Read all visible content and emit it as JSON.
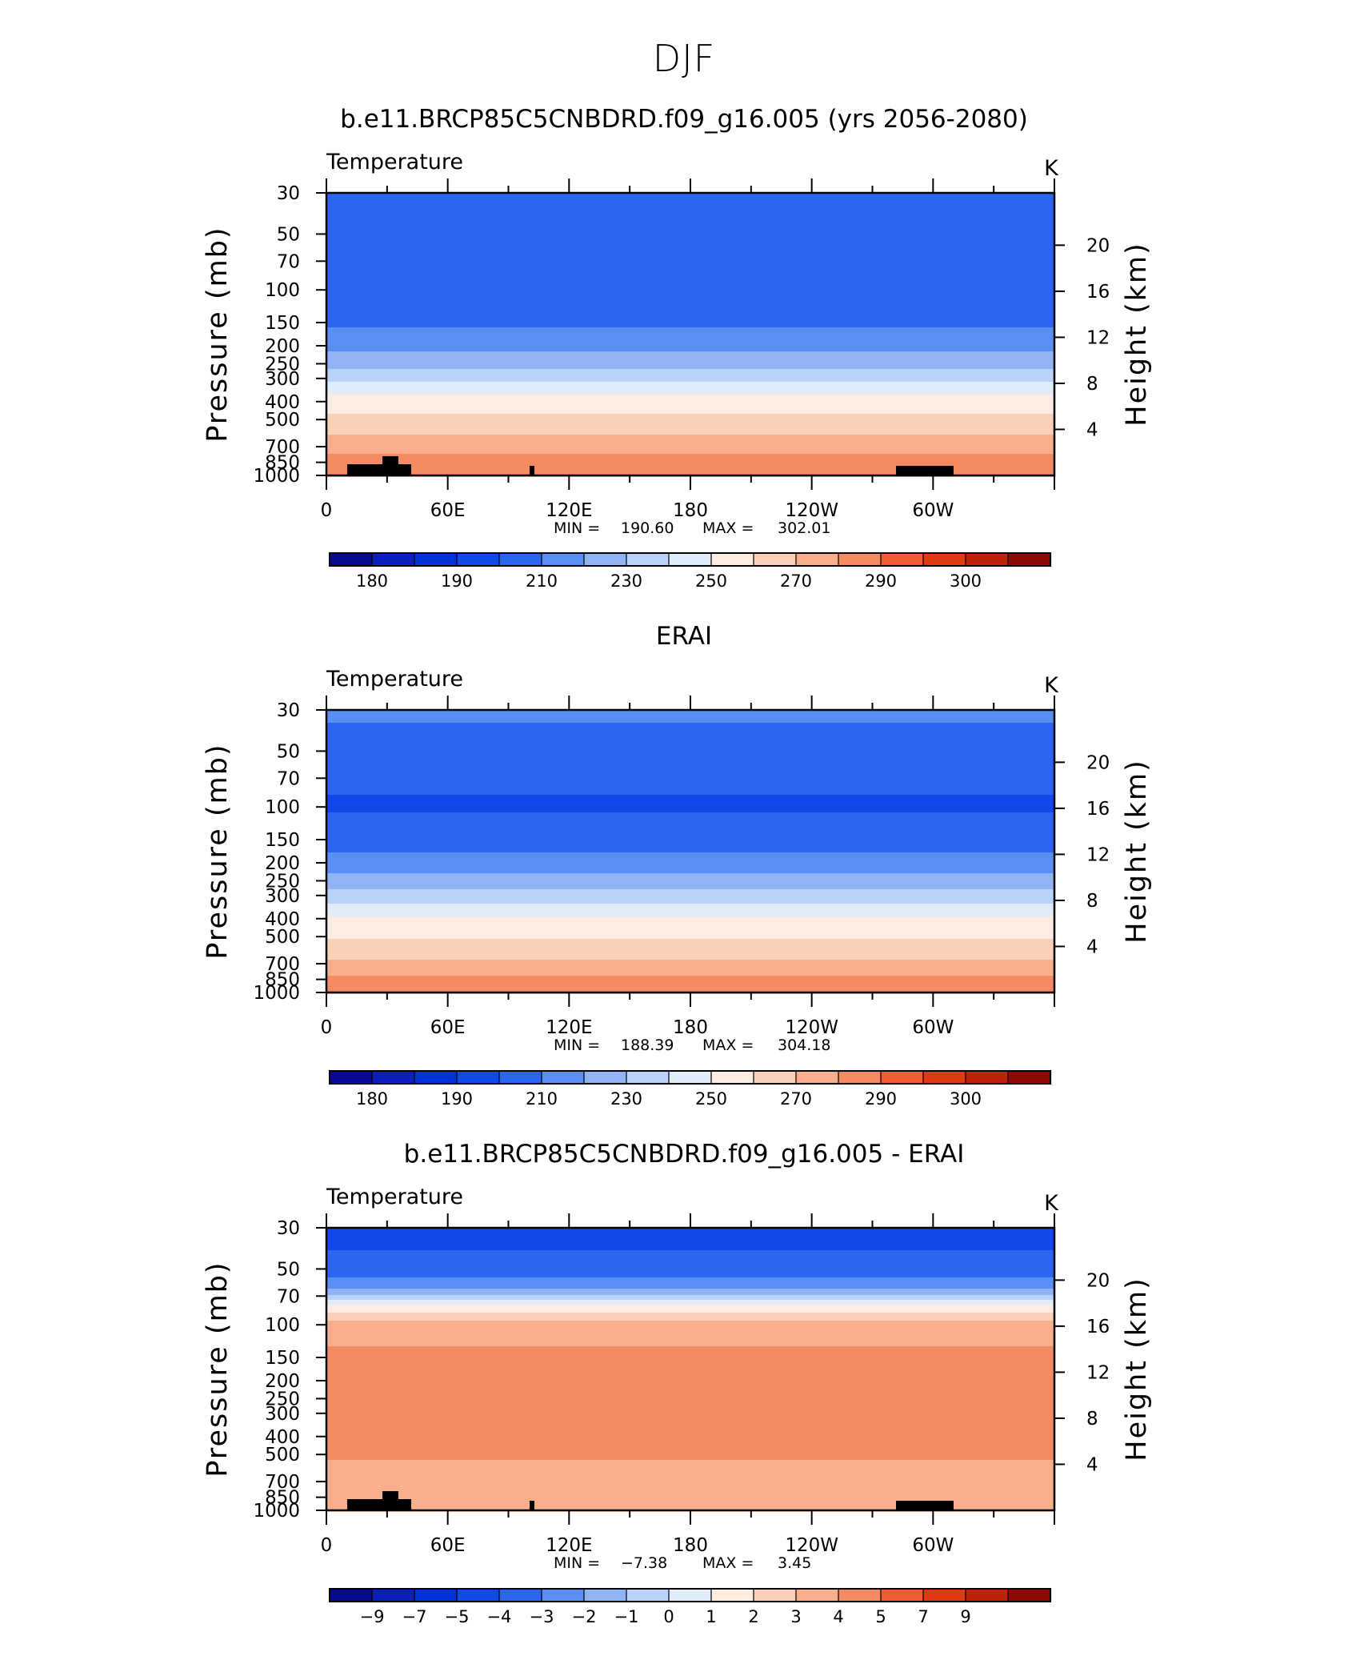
{
  "figure": {
    "title": "DJF"
  },
  "colors": {
    "temperature_palette": [
      "#08088f",
      "#0a1fbb",
      "#0032dc",
      "#1048ea",
      "#2a66ee",
      "#5a8ef2",
      "#8fb3f5",
      "#bad2f8",
      "#e1ecfb",
      "#fdece1",
      "#fbd0b8",
      "#f9af8e",
      "#f68a63",
      "#f15c34",
      "#e03a12",
      "#bf2208",
      "#8e0a06"
    ],
    "anomaly_palette": [
      "#08088f",
      "#0a1fbb",
      "#0032dc",
      "#1048ea",
      "#2a66ee",
      "#5a8ef2",
      "#8fb3f5",
      "#bad2f8",
      "#e1ecfb",
      "#fdece1",
      "#fbd0b8",
      "#f9af8e",
      "#f68a63",
      "#f15c34",
      "#e03a12",
      "#bf2208",
      "#8e0a06"
    ],
    "topography": "#000000"
  },
  "chart_data": [
    {
      "type": "heatmap",
      "title": "b.e11.BRCP85C5CNBDRD.f09_g16.005 (yrs 2056-2080)",
      "left_label": "Temperature",
      "right_label": "K",
      "xlabel": "",
      "ylabel": "Pressure (mb)",
      "ylabel_right": "Height (km)",
      "x_ticks": [
        "0",
        "60E",
        "120E",
        "180",
        "120W",
        "60W"
      ],
      "y_ticks": [
        "30",
        "50",
        "70",
        "100",
        "150",
        "200",
        "250",
        "300",
        "400",
        "500",
        "700",
        "850",
        "1000"
      ],
      "y_ticks_right": [
        "20",
        "16",
        "12",
        "8",
        "4"
      ],
      "stats": {
        "min_label": "MIN =",
        "min": "190.60",
        "max_label": "MAX =",
        "max": "302.01"
      },
      "colorbar_labels": [
        "180",
        "190",
        "210",
        "230",
        "250",
        "270",
        "290",
        "300"
      ],
      "profile": [
        {
          "p": 30,
          "v": 208
        },
        {
          "p": 45,
          "v": 204
        },
        {
          "p": 70,
          "v": 201
        },
        {
          "p": 100,
          "v": 200
        },
        {
          "p": 130,
          "v": 203
        },
        {
          "p": 170,
          "v": 212
        },
        {
          "p": 230,
          "v": 222
        },
        {
          "p": 280,
          "v": 232
        },
        {
          "p": 330,
          "v": 245
        },
        {
          "p": 400,
          "v": 254
        },
        {
          "p": 500,
          "v": 263
        },
        {
          "p": 600,
          "v": 270
        },
        {
          "p": 700,
          "v": 276
        },
        {
          "p": 800,
          "v": 282
        },
        {
          "p": 900,
          "v": 287
        },
        {
          "p": 1000,
          "v": 290
        }
      ]
    },
    {
      "type": "heatmap",
      "title": "ERAI",
      "left_label": "Temperature",
      "right_label": "K",
      "xlabel": "",
      "ylabel": "Pressure (mb)",
      "ylabel_right": "Height (km)",
      "x_ticks": [
        "0",
        "60E",
        "120E",
        "180",
        "120W",
        "60W"
      ],
      "y_ticks": [
        "30",
        "50",
        "70",
        "100",
        "150",
        "200",
        "250",
        "300",
        "400",
        "500",
        "700",
        "850",
        "1000"
      ],
      "y_ticks_right": [
        "20",
        "16",
        "12",
        "8",
        "4"
      ],
      "stats": {
        "min_label": "MIN =",
        "min": "188.39",
        "max_label": "MAX =",
        "max": "304.18"
      },
      "colorbar_labels": [
        "180",
        "190",
        "210",
        "230",
        "250",
        "270",
        "290",
        "300"
      ],
      "profile": [
        {
          "p": 30,
          "v": 214
        },
        {
          "p": 40,
          "v": 207
        },
        {
          "p": 55,
          "v": 203
        },
        {
          "p": 100,
          "v": 199
        },
        {
          "p": 150,
          "v": 205
        },
        {
          "p": 200,
          "v": 214
        },
        {
          "p": 250,
          "v": 224
        },
        {
          "p": 300,
          "v": 234
        },
        {
          "p": 350,
          "v": 244
        },
        {
          "p": 400,
          "v": 251
        },
        {
          "p": 500,
          "v": 259
        },
        {
          "p": 600,
          "v": 266
        },
        {
          "p": 700,
          "v": 272
        },
        {
          "p": 800,
          "v": 279
        },
        {
          "p": 900,
          "v": 285
        },
        {
          "p": 1000,
          "v": 289
        }
      ]
    },
    {
      "type": "heatmap",
      "title": "b.e11.BRCP85C5CNBDRD.f09_g16.005 - ERAI",
      "left_label": "Temperature",
      "right_label": "K",
      "xlabel": "",
      "ylabel": "Pressure (mb)",
      "ylabel_right": "Height (km)",
      "x_ticks": [
        "0",
        "60E",
        "120E",
        "180",
        "120W",
        "60W"
      ],
      "y_ticks": [
        "30",
        "50",
        "70",
        "100",
        "150",
        "200",
        "250",
        "300",
        "400",
        "500",
        "700",
        "850",
        "1000"
      ],
      "y_ticks_right": [
        "20",
        "16",
        "12",
        "8",
        "4"
      ],
      "stats": {
        "min_label": "MIN =",
        "min": "−7.38",
        "max_label": "MAX =",
        "max": "3.45"
      },
      "colorbar_labels": [
        "−9",
        "−7",
        "−5",
        "−4",
        "−3",
        "−2",
        "−1",
        "0",
        "1",
        "2",
        "3",
        "4",
        "5",
        "7",
        "9"
      ],
      "profile": [
        {
          "p": 30,
          "v": -6.5
        },
        {
          "p": 40,
          "v": -6
        },
        {
          "p": 50,
          "v": -5.5
        },
        {
          "p": 62,
          "v": -4.4
        },
        {
          "p": 72,
          "v": -2.4
        },
        {
          "p": 80,
          "v": -0.6
        },
        {
          "p": 90,
          "v": 0.5
        },
        {
          "p": 100,
          "v": 1.6
        },
        {
          "p": 150,
          "v": 2.2
        },
        {
          "p": 200,
          "v": 2.6
        },
        {
          "p": 300,
          "v": 2.8
        },
        {
          "p": 400,
          "v": 2.5
        },
        {
          "p": 500,
          "v": 2.3
        },
        {
          "p": 600,
          "v": 1.5
        },
        {
          "p": 700,
          "v": 1.2
        },
        {
          "p": 800,
          "v": 1.4
        },
        {
          "p": 1000,
          "v": 1.6
        }
      ]
    }
  ]
}
